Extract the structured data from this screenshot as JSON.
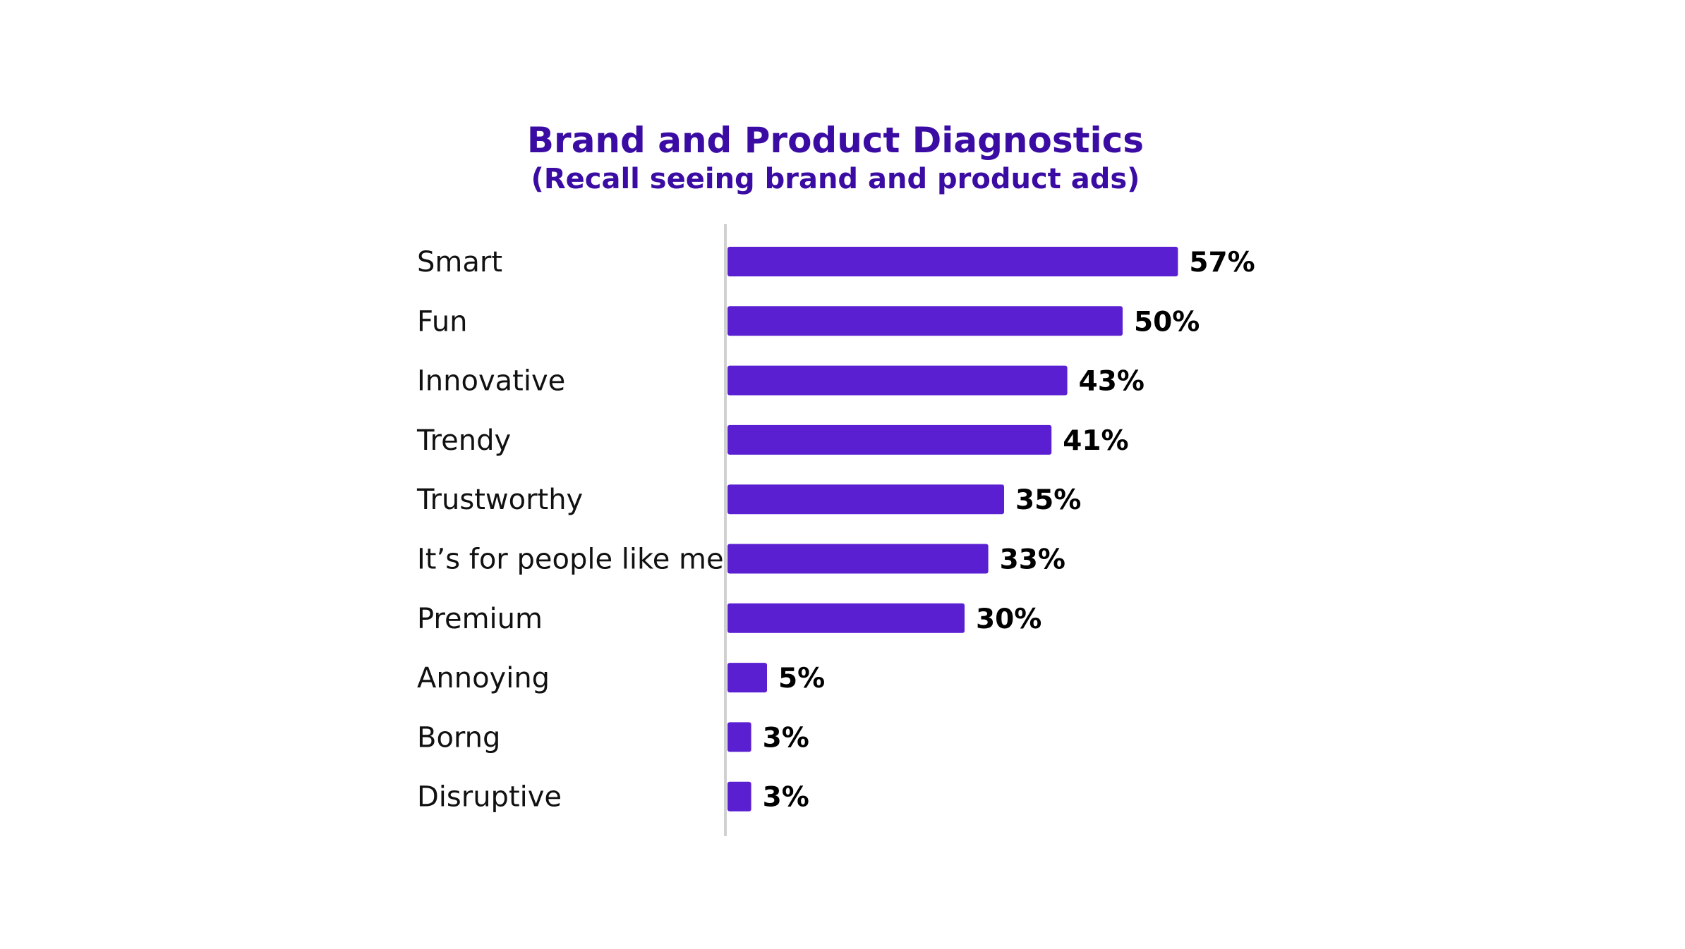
{
  "chart_data": {
    "type": "bar",
    "orientation": "horizontal",
    "title": "Brand and Product Diagnostics",
    "subtitle": "(Recall seeing brand and product ads)",
    "categories": [
      "Smart",
      "Fun",
      "Innovative",
      "Trendy",
      "Trustworthy",
      "It’s for people like me",
      "Premium",
      "Annoying",
      "Borng",
      "Disruptive"
    ],
    "values": [
      57,
      50,
      43,
      41,
      35,
      33,
      30,
      5,
      3,
      3
    ],
    "value_labels": [
      "57%",
      "50%",
      "43%",
      "41%",
      "35%",
      "33%",
      "30%",
      "5%",
      "3%",
      "3%"
    ],
    "xlim": [
      0,
      100
    ],
    "grid": false,
    "legend": "none",
    "colors": {
      "bar": "#5a1fd1",
      "title": "#3a0ca3",
      "axis": "#d0d0d0",
      "label": "#111111",
      "value": "#000000"
    }
  }
}
